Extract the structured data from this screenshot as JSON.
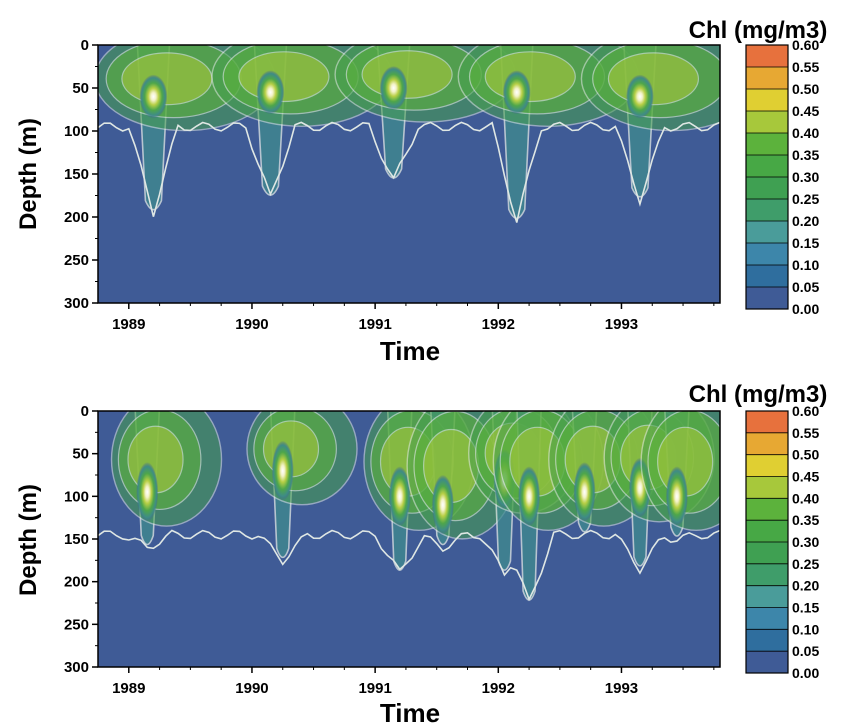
{
  "colors": {
    "background_field": "#3f5b96",
    "contour_line": "#dfe7e4",
    "frame": "#000000",
    "colorbar": [
      "#3f5b96",
      "#2f6e9e",
      "#3d86aa",
      "#4a9c9a",
      "#3f9d6a",
      "#3fa052",
      "#47a845",
      "#5cb23c",
      "#a7c83b",
      "#e0cf32",
      "#e7a833",
      "#e7713d"
    ]
  },
  "chart_data": [
    {
      "type": "heatmap",
      "title": "",
      "xlabel": "Time",
      "ylabel": "Depth (m)",
      "xlim": [
        1988.75,
        1993.8
      ],
      "ylim": [
        0,
        300
      ],
      "y_inverted": true,
      "x_ticks": [
        "1989",
        "1990",
        "1991",
        "1992",
        "1993"
      ],
      "y_ticks": [
        "0",
        "50",
        "100",
        "150",
        "200",
        "250",
        "300"
      ],
      "colorbar": {
        "title": "Chl (mg/m3)",
        "levels": [
          "0.60",
          "0.55",
          "0.50",
          "0.45",
          "0.40",
          "0.35",
          "0.30",
          "0.25",
          "0.20",
          "0.15",
          "0.10",
          "0.05",
          "0.00"
        ]
      },
      "blooms": [
        {
          "time": 1989.2,
          "max_depth": 195,
          "peak_depth": 60,
          "peak_chl": 0.45
        },
        {
          "time": 1990.15,
          "max_depth": 178,
          "peak_depth": 55,
          "peak_chl": 0.45
        },
        {
          "time": 1991.15,
          "max_depth": 158,
          "peak_depth": 50,
          "peak_chl": 0.45
        },
        {
          "time": 1992.15,
          "max_depth": 205,
          "peak_depth": 55,
          "peak_chl": 0.45
        },
        {
          "time": 1993.15,
          "max_depth": 180,
          "peak_depth": 60,
          "peak_chl": 0.4
        }
      ]
    },
    {
      "type": "heatmap",
      "title": "",
      "xlabel": "Time",
      "ylabel": "Depth (m)",
      "xlim": [
        1988.75,
        1993.8
      ],
      "ylim": [
        0,
        300
      ],
      "y_inverted": true,
      "x_ticks": [
        "1989",
        "1990",
        "1991",
        "1992",
        "1993"
      ],
      "y_ticks": [
        "0",
        "50",
        "100",
        "150",
        "200",
        "250",
        "300"
      ],
      "colorbar": {
        "title": "Chl (mg/m3)",
        "levels": [
          "0.60",
          "0.55",
          "0.50",
          "0.45",
          "0.40",
          "0.35",
          "0.30",
          "0.25",
          "0.20",
          "0.15",
          "0.10",
          "0.05",
          "0.00"
        ]
      },
      "blooms": [
        {
          "time": 1989.15,
          "max_depth": 160,
          "peak_depth": 95,
          "peak_chl": 0.45
        },
        {
          "time": 1990.25,
          "max_depth": 175,
          "peak_depth": 70,
          "peak_chl": 0.4
        },
        {
          "time": 1991.2,
          "max_depth": 190,
          "peak_depth": 100,
          "peak_chl": 0.4
        },
        {
          "time": 1991.55,
          "max_depth": 160,
          "peak_depth": 110,
          "peak_chl": 0.4
        },
        {
          "time": 1992.05,
          "max_depth": 190,
          "peak_depth": 80,
          "peak_chl": 0.45
        },
        {
          "time": 1992.25,
          "max_depth": 225,
          "peak_depth": 100,
          "peak_chl": 0.4
        },
        {
          "time": 1992.7,
          "max_depth": 145,
          "peak_depth": 95,
          "peak_chl": 0.35
        },
        {
          "time": 1993.15,
          "max_depth": 185,
          "peak_depth": 90,
          "peak_chl": 0.45
        },
        {
          "time": 1993.45,
          "max_depth": 150,
          "peak_depth": 100,
          "peak_chl": 0.4
        }
      ]
    }
  ]
}
